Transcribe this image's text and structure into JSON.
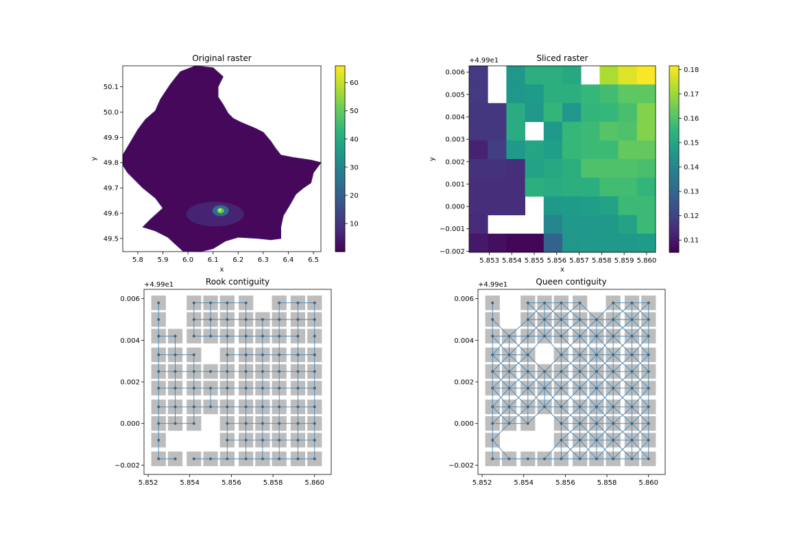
{
  "figure": {
    "panels": [
      "Original raster",
      "Sliced raster",
      "Rook contiguity",
      "Queen contiguity"
    ]
  },
  "chart_data": [
    {
      "type": "heatmap",
      "title": "Original raster",
      "xlabel": "x",
      "ylabel": "y",
      "xlim": [
        5.74,
        6.53
      ],
      "ylim": [
        49.448,
        50.183
      ],
      "xticks": [
        "5.8",
        "5.9",
        "6.0",
        "6.1",
        "6.2",
        "6.3",
        "6.4",
        "6.5"
      ],
      "xtick_values": [
        5.8,
        5.9,
        6.0,
        6.1,
        6.2,
        6.3,
        6.4,
        6.5
      ],
      "yticks": [
        "49.5",
        "49.6",
        "49.7",
        "49.8",
        "49.9",
        "50.0",
        "50.1"
      ],
      "ytick_values": [
        49.5,
        49.6,
        49.7,
        49.8,
        49.9,
        50.0,
        50.1
      ],
      "colorscale": "viridis",
      "colorbar": {
        "ticks": [
          "10",
          "20",
          "30",
          "40",
          "50",
          "60"
        ],
        "tick_values": [
          10,
          20,
          30,
          40,
          50,
          60
        ],
        "range": [
          0,
          66
        ]
      },
      "boundary": [
        [
          6.03,
          50.183
        ],
        [
          6.1,
          50.175
        ],
        [
          6.14,
          50.14
        ],
        [
          6.12,
          50.1
        ],
        [
          6.12,
          50.06
        ],
        [
          6.14,
          50.03
        ],
        [
          6.16,
          49.995
        ],
        [
          6.18,
          49.975
        ],
        [
          6.21,
          49.96
        ],
        [
          6.27,
          49.935
        ],
        [
          6.3,
          49.92
        ],
        [
          6.33,
          49.885
        ],
        [
          6.35,
          49.855
        ],
        [
          6.37,
          49.83
        ],
        [
          6.42,
          49.82
        ],
        [
          6.49,
          49.81
        ],
        [
          6.53,
          49.8
        ],
        [
          6.5,
          49.76
        ],
        [
          6.49,
          49.72
        ],
        [
          6.46,
          49.7
        ],
        [
          6.43,
          49.675
        ],
        [
          6.41,
          49.64
        ],
        [
          6.38,
          49.59
        ],
        [
          6.37,
          49.545
        ],
        [
          6.37,
          49.5
        ],
        [
          6.33,
          49.495
        ],
        [
          6.28,
          49.5
        ],
        [
          6.2,
          49.505
        ],
        [
          6.15,
          49.49
        ],
        [
          6.1,
          49.46
        ],
        [
          6.05,
          49.448
        ],
        [
          5.98,
          49.45
        ],
        [
          5.92,
          49.505
        ],
        [
          5.87,
          49.53
        ],
        [
          5.82,
          49.545
        ],
        [
          5.85,
          49.575
        ],
        [
          5.9,
          49.62
        ],
        [
          5.87,
          49.66
        ],
        [
          5.82,
          49.7
        ],
        [
          5.76,
          49.76
        ],
        [
          5.74,
          49.79
        ],
        [
          5.74,
          49.83
        ],
        [
          5.77,
          49.88
        ],
        [
          5.8,
          49.93
        ],
        [
          5.83,
          49.97
        ],
        [
          5.87,
          50.005
        ],
        [
          5.89,
          50.05
        ],
        [
          5.93,
          50.11
        ],
        [
          5.97,
          50.16
        ]
      ],
      "hotspot": {
        "x": 6.13,
        "y": 49.61,
        "value": 66
      }
    },
    {
      "type": "heatmap",
      "title": "Sliced raster",
      "xlabel": "x",
      "ylabel": "y",
      "axis_offset": "+4.99e1",
      "x": [
        5.8525,
        5.8533,
        5.8542,
        5.855,
        5.8558,
        5.8567,
        5.8575,
        5.8583,
        5.8592,
        5.86
      ],
      "y": [
        49.9058,
        49.905,
        49.9042,
        49.9033,
        49.9025,
        49.9017,
        49.9008,
        49.9,
        49.8992,
        49.8983
      ],
      "xlim": [
        5.8521,
        5.8604
      ],
      "ylim": [
        -0.00205,
        0.00628
      ],
      "xticks": [
        "5.853",
        "5.854",
        "5.855",
        "5.856",
        "5.857",
        "5.858",
        "5.859",
        "5.860"
      ],
      "xtick_values": [
        5.853,
        5.854,
        5.855,
        5.856,
        5.857,
        5.858,
        5.859,
        5.86
      ],
      "yticks": [
        "−0.002",
        "−0.001",
        "0.000",
        "0.001",
        "0.002",
        "0.003",
        "0.004",
        "0.005",
        "0.006"
      ],
      "ytick_values": [
        -0.002,
        -0.001,
        0.0,
        0.001,
        0.002,
        0.003,
        0.004,
        0.005,
        0.006
      ],
      "values": [
        [
          0.118,
          null,
          0.145,
          0.153,
          0.153,
          0.151,
          null,
          0.172,
          0.178,
          0.181
        ],
        [
          0.118,
          null,
          0.145,
          0.147,
          0.153,
          0.153,
          0.156,
          0.158,
          0.162,
          0.162
        ],
        [
          0.117,
          0.117,
          0.152,
          0.146,
          0.155,
          0.145,
          0.155,
          0.156,
          0.159,
          0.167
        ],
        [
          0.117,
          0.117,
          0.152,
          null,
          0.146,
          0.156,
          0.157,
          0.161,
          0.16,
          0.167
        ],
        [
          0.112,
          0.119,
          0.146,
          0.15,
          0.148,
          0.156,
          0.157,
          0.157,
          0.163,
          0.163
        ],
        [
          0.116,
          0.116,
          0.115,
          0.149,
          0.151,
          0.153,
          0.16,
          0.16,
          0.16,
          0.159
        ],
        [
          0.115,
          0.115,
          0.115,
          0.153,
          0.152,
          0.153,
          0.153,
          0.158,
          0.158,
          0.155
        ],
        [
          0.115,
          0.115,
          0.115,
          null,
          0.146,
          0.147,
          0.148,
          0.149,
          0.157,
          0.157
        ],
        [
          0.114,
          null,
          null,
          null,
          0.14,
          0.146,
          0.146,
          0.146,
          0.149,
          0.157
        ],
        [
          0.11,
          0.108,
          0.106,
          0.106,
          0.129,
          0.145,
          0.146,
          0.146,
          0.146,
          0.147
        ]
      ],
      "colorscale": "viridis",
      "colorbar": {
        "ticks": [
          "0.11",
          "0.12",
          "0.13",
          "0.14",
          "0.15",
          "0.16",
          "0.17",
          "0.18"
        ],
        "tick_values": [
          0.11,
          0.12,
          0.13,
          0.14,
          0.15,
          0.16,
          0.17,
          0.18
        ],
        "range": [
          0.105,
          0.1815
        ]
      }
    },
    {
      "type": "scatter",
      "title": "Rook contiguity",
      "axis_offset": "+4.99e1",
      "grid_source": "Sliced raster",
      "graph": "rook",
      "missing_links": [
        [
          [
            2,
            1
          ],
          [
            2,
            2
          ]
        ],
        [
          [
            2,
            2
          ],
          [
            3,
            2
          ]
        ],
        [
          [
            4,
            3
          ],
          [
            5,
            3
          ]
        ],
        [
          [
            2,
            8
          ],
          [
            2,
            9
          ]
        ],
        [
          [
            9,
            1
          ],
          [
            9,
            2
          ]
        ]
      ],
      "xlim": [
        5.8518,
        5.8608
      ],
      "ylim": [
        -0.00245,
        0.00645
      ],
      "xticks": [
        "5.852",
        "5.854",
        "5.856",
        "5.858",
        "5.860"
      ],
      "xtick_values": [
        5.852,
        5.854,
        5.856,
        5.858,
        5.86
      ],
      "yticks": [
        "−0.002",
        "0.000",
        "0.002",
        "0.004",
        "0.006"
      ],
      "ytick_values": [
        -0.002,
        0.0,
        0.002,
        0.004,
        0.006
      ]
    },
    {
      "type": "scatter",
      "title": "Queen contiguity",
      "axis_offset": "+4.99e1",
      "grid_source": "Sliced raster",
      "graph": "queen",
      "missing_links": [],
      "xlim": [
        5.8518,
        5.8608
      ],
      "ylim": [
        -0.00245,
        0.00645
      ],
      "xticks": [
        "5.852",
        "5.854",
        "5.856",
        "5.858",
        "5.860"
      ],
      "xtick_values": [
        5.852,
        5.854,
        5.856,
        5.858,
        5.86
      ],
      "yticks": [
        "−0.002",
        "0.000",
        "0.002",
        "0.004",
        "0.006"
      ],
      "ytick_values": [
        -0.002,
        0.0,
        0.002,
        0.004,
        0.006
      ]
    }
  ]
}
